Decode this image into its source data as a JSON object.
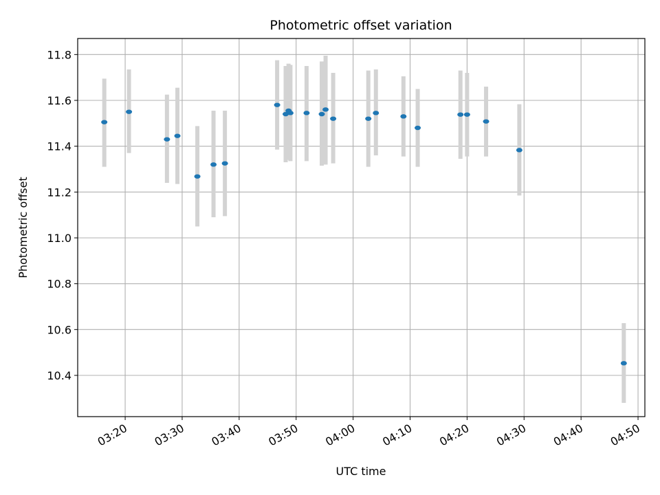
{
  "chart_data": {
    "type": "scatter",
    "title": "Photometric offset variation",
    "xlabel": "UTC time",
    "ylabel": "Photometric offset",
    "x_ticks": [
      "03:20",
      "03:30",
      "03:40",
      "03:50",
      "04:00",
      "04:10",
      "04:20",
      "04:30",
      "04:40",
      "04:50"
    ],
    "y_ticks": [
      "10.4",
      "10.6",
      "10.8",
      "11.0",
      "11.2",
      "11.4",
      "11.6",
      "11.8"
    ],
    "grid": true,
    "xlim": [
      "03:11:40",
      "04:51:12"
    ],
    "ylim": [
      10.22,
      11.87
    ],
    "errorbar_color": "#d3d3d3",
    "point_color": "#1f77b4",
    "series": [
      {
        "points": [
          {
            "t": "03:16:20",
            "y": 11.505,
            "low": 11.31,
            "high": 11.695
          },
          {
            "t": "03:20:40",
            "y": 11.55,
            "low": 11.37,
            "high": 11.735
          },
          {
            "t": "03:27:20",
            "y": 11.43,
            "low": 11.24,
            "high": 11.625
          },
          {
            "t": "03:29:10",
            "y": 11.445,
            "low": 11.235,
            "high": 11.655
          },
          {
            "t": "03:32:40",
            "y": 11.268,
            "low": 11.05,
            "high": 11.488
          },
          {
            "t": "03:35:30",
            "y": 11.32,
            "low": 11.09,
            "high": 11.555
          },
          {
            "t": "03:37:30",
            "y": 11.325,
            "low": 11.095,
            "high": 11.555
          },
          {
            "t": "03:46:40",
            "y": 11.58,
            "low": 11.385,
            "high": 11.775
          },
          {
            "t": "03:48:10",
            "y": 11.54,
            "low": 11.33,
            "high": 11.75
          },
          {
            "t": "03:48:40",
            "y": 11.555,
            "low": 11.34,
            "high": 11.76
          },
          {
            "t": "03:49:00",
            "y": 11.545,
            "low": 11.335,
            "high": 11.755
          },
          {
            "t": "03:51:50",
            "y": 11.545,
            "low": 11.335,
            "high": 11.75
          },
          {
            "t": "03:54:30",
            "y": 11.54,
            "low": 11.315,
            "high": 11.77
          },
          {
            "t": "03:55:10",
            "y": 11.56,
            "low": 11.32,
            "high": 11.795
          },
          {
            "t": "03:56:30",
            "y": 11.52,
            "low": 11.325,
            "high": 11.72
          },
          {
            "t": "04:02:40",
            "y": 11.52,
            "low": 11.31,
            "high": 11.73
          },
          {
            "t": "04:04:00",
            "y": 11.545,
            "low": 11.36,
            "high": 11.735
          },
          {
            "t": "04:08:50",
            "y": 11.53,
            "low": 11.355,
            "high": 11.705
          },
          {
            "t": "04:11:20",
            "y": 11.48,
            "low": 11.31,
            "high": 11.65
          },
          {
            "t": "04:18:50",
            "y": 11.538,
            "low": 11.345,
            "high": 11.73
          },
          {
            "t": "04:20:00",
            "y": 11.538,
            "low": 11.355,
            "high": 11.72
          },
          {
            "t": "04:23:20",
            "y": 11.508,
            "low": 11.355,
            "high": 11.66
          },
          {
            "t": "04:29:10",
            "y": 11.383,
            "low": 11.185,
            "high": 11.583
          },
          {
            "t": "04:47:30",
            "y": 10.453,
            "low": 10.28,
            "high": 10.628
          }
        ]
      }
    ]
  }
}
